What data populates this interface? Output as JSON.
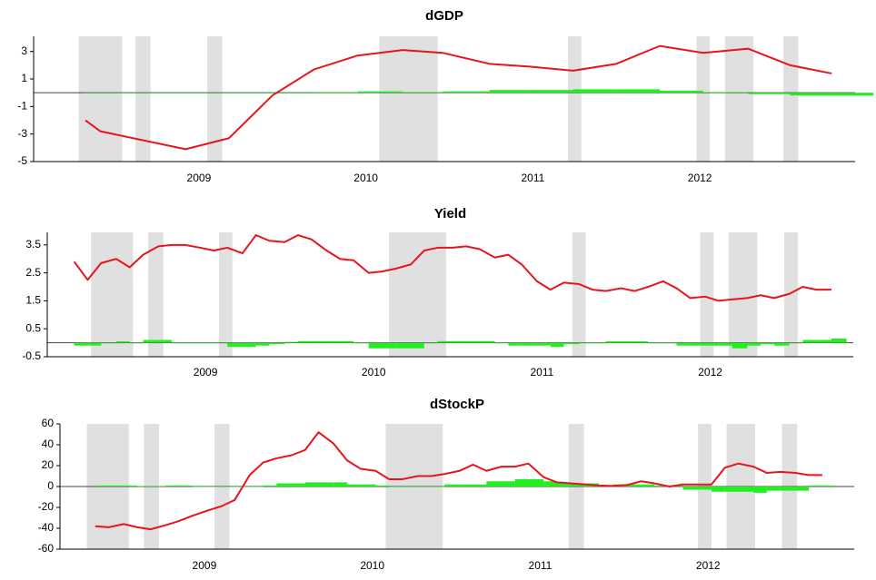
{
  "chart_data": [
    {
      "type": "line",
      "title": "dGDP",
      "xlim": [
        2008.51,
        2013.43
      ],
      "ylim": [
        -5,
        4.1
      ],
      "xticks": [
        {
          "value": 2009.5,
          "label": "2009"
        },
        {
          "value": 2010.5,
          "label": "2010"
        },
        {
          "value": 2011.5,
          "label": "2011"
        },
        {
          "value": 2012.5,
          "label": "2012"
        }
      ],
      "yticks": [
        -5,
        -3,
        -1,
        1,
        3
      ],
      "shaded": [
        [
          2008.78,
          2009.04
        ],
        [
          2009.12,
          2009.21
        ],
        [
          2009.55,
          2009.64
        ],
        [
          2010.58,
          2010.93
        ],
        [
          2011.71,
          2011.79
        ],
        [
          2012.48,
          2012.56
        ],
        [
          2012.65,
          2012.82
        ],
        [
          2013.0,
          2013.09
        ]
      ],
      "series": [
        {
          "type": "bar",
          "color": "#22ee22",
          "x": [
            2008.82,
            2008.91,
            2009.42,
            2009.68,
            2009.94,
            2010.19,
            2010.45,
            2010.72,
            2010.96,
            2011.24,
            2011.48,
            2011.74,
            2012.0,
            2012.26,
            2012.52,
            2012.79,
            2013.04,
            2013.29
          ],
          "values": [
            0,
            0,
            0,
            0,
            0,
            0.05,
            0.1,
            0.05,
            0.1,
            0.2,
            0.2,
            0.25,
            0.25,
            0.15,
            0.05,
            -0.1,
            -0.2,
            -0.2
          ]
        },
        {
          "type": "line",
          "color": "#e8141c",
          "x": [
            2008.82,
            2008.91,
            2009.42,
            2009.68,
            2009.94,
            2010.19,
            2010.45,
            2010.72,
            2010.96,
            2011.24,
            2011.48,
            2011.74,
            2012.0,
            2012.26,
            2012.52,
            2012.79,
            2013.04,
            2013.29
          ],
          "values": [
            -2.0,
            -2.8,
            -4.1,
            -3.3,
            -0.2,
            1.7,
            2.7,
            3.1,
            2.9,
            2.1,
            1.9,
            1.6,
            2.1,
            3.4,
            2.9,
            3.2,
            2.0,
            1.4
          ]
        }
      ]
    },
    {
      "type": "line",
      "title": "Yield",
      "xlim": [
        2008.56,
        2013.35
      ],
      "ylim": [
        -0.5,
        3.95
      ],
      "xticks": [
        {
          "value": 2009.5,
          "label": "2009"
        },
        {
          "value": 2010.5,
          "label": "2010"
        },
        {
          "value": 2011.5,
          "label": "2011"
        },
        {
          "value": 2012.5,
          "label": "2012"
        }
      ],
      "yticks": [
        -0.5,
        0.5,
        1.5,
        2.5,
        3.5
      ],
      "shaded": [
        [
          2008.82,
          2009.07
        ],
        [
          2009.16,
          2009.25
        ],
        [
          2009.58,
          2009.66
        ],
        [
          2010.59,
          2010.93
        ],
        [
          2011.68,
          2011.76
        ],
        [
          2012.44,
          2012.52
        ],
        [
          2012.61,
          2012.78
        ],
        [
          2012.94,
          2013.02
        ]
      ],
      "series": [
        {
          "type": "bar",
          "color": "#22ee22",
          "x": [
            2008.72,
            2008.8,
            2008.88,
            2008.97,
            2009.05,
            2009.13,
            2009.22,
            2009.3,
            2009.38,
            2009.47,
            2009.55,
            2009.63,
            2009.72,
            2009.8,
            2009.88,
            2009.97,
            2010.05,
            2010.13,
            2010.22,
            2010.3,
            2010.38,
            2010.47,
            2010.55,
            2010.63,
            2010.72,
            2010.8,
            2010.88,
            2010.97,
            2011.05,
            2011.13,
            2011.22,
            2011.3,
            2011.38,
            2011.47,
            2011.55,
            2011.63,
            2011.72,
            2011.8,
            2011.88,
            2011.97,
            2012.05,
            2012.13,
            2012.22,
            2012.3,
            2012.38,
            2012.47,
            2012.55,
            2012.63,
            2012.72,
            2012.8,
            2012.88,
            2012.97,
            2013.05,
            2013.13,
            2013.22
          ],
          "values": [
            -0.1,
            -0.1,
            0,
            0.05,
            0,
            0.1,
            0.1,
            0,
            0,
            0,
            0,
            -0.15,
            -0.15,
            -0.1,
            -0.05,
            0.03,
            0.06,
            0.06,
            0.06,
            0.06,
            0,
            -0.2,
            -0.2,
            -0.2,
            -0.2,
            0,
            0.06,
            0.06,
            0.06,
            0.06,
            0,
            -0.1,
            -0.1,
            -0.1,
            -0.15,
            -0.05,
            0,
            0,
            0.05,
            0.05,
            0.05,
            0,
            0,
            -0.1,
            -0.1,
            -0.1,
            -0.1,
            -0.2,
            -0.1,
            -0.05,
            -0.1,
            0,
            0.1,
            0.1,
            0.15
          ]
        },
        {
          "type": "line",
          "color": "#e8141c",
          "x": [
            2008.72,
            2008.8,
            2008.88,
            2008.97,
            2009.05,
            2009.13,
            2009.22,
            2009.3,
            2009.38,
            2009.47,
            2009.55,
            2009.63,
            2009.72,
            2009.8,
            2009.88,
            2009.97,
            2010.05,
            2010.13,
            2010.22,
            2010.3,
            2010.38,
            2010.47,
            2010.55,
            2010.63,
            2010.72,
            2010.8,
            2010.88,
            2010.97,
            2011.05,
            2011.13,
            2011.22,
            2011.3,
            2011.38,
            2011.47,
            2011.55,
            2011.63,
            2011.72,
            2011.8,
            2011.88,
            2011.97,
            2012.05,
            2012.13,
            2012.22,
            2012.3,
            2012.38,
            2012.47,
            2012.55,
            2012.63,
            2012.72,
            2012.8,
            2012.88,
            2012.97,
            2013.05,
            2013.13,
            2013.22
          ],
          "values": [
            2.9,
            2.25,
            2.85,
            3.0,
            2.7,
            3.15,
            3.45,
            3.5,
            3.5,
            3.4,
            3.3,
            3.4,
            3.2,
            3.85,
            3.65,
            3.6,
            3.85,
            3.7,
            3.3,
            3.0,
            2.95,
            2.5,
            2.55,
            2.65,
            2.8,
            3.3,
            3.4,
            3.4,
            3.45,
            3.35,
            3.05,
            3.15,
            2.8,
            2.2,
            1.9,
            2.15,
            2.1,
            1.9,
            1.85,
            1.95,
            1.85,
            2.0,
            2.2,
            1.95,
            1.6,
            1.65,
            1.5,
            1.55,
            1.6,
            1.7,
            1.6,
            1.75,
            2.0,
            1.9,
            1.9
          ]
        }
      ]
    },
    {
      "type": "line",
      "title": "dStockP",
      "xlim": [
        2008.64,
        2013.37
      ],
      "ylim": [
        -60,
        60
      ],
      "xticks": [
        {
          "value": 2009.5,
          "label": "2009"
        },
        {
          "value": 2010.5,
          "label": "2010"
        },
        {
          "value": 2011.5,
          "label": "2011"
        },
        {
          "value": 2012.5,
          "label": "2012"
        }
      ],
      "yticks": [
        -60,
        -40,
        -20,
        0,
        20,
        40,
        60
      ],
      "shaded": [
        [
          2008.8,
          2009.05
        ],
        [
          2009.14,
          2009.23
        ],
        [
          2009.56,
          2009.65
        ],
        [
          2010.58,
          2010.92
        ],
        [
          2011.67,
          2011.76
        ],
        [
          2012.44,
          2012.52
        ],
        [
          2012.61,
          2012.78
        ],
        [
          2012.94,
          2013.03
        ]
      ],
      "series": [
        {
          "type": "bar",
          "color": "#22ee22",
          "x": [
            2008.85,
            2008.93,
            2009.02,
            2009.1,
            2009.18,
            2009.27,
            2009.35,
            2009.43,
            2009.52,
            2009.6,
            2009.68,
            2009.77,
            2009.85,
            2009.93,
            2010.02,
            2010.1,
            2010.18,
            2010.27,
            2010.35,
            2010.43,
            2010.52,
            2010.6,
            2010.68,
            2010.77,
            2010.85,
            2010.93,
            2011.02,
            2011.1,
            2011.18,
            2011.27,
            2011.35,
            2011.43,
            2011.52,
            2011.6,
            2011.68,
            2011.77,
            2011.85,
            2011.93,
            2012.02,
            2012.1,
            2012.18,
            2012.27,
            2012.35,
            2012.43,
            2012.52,
            2012.6,
            2012.68,
            2012.77,
            2012.85,
            2012.93,
            2013.02,
            2013.1,
            2013.18
          ],
          "values": [
            1,
            1,
            1,
            0.5,
            0.5,
            1,
            1,
            0,
            0,
            0,
            0,
            0,
            1,
            3,
            3,
            4,
            4,
            4,
            2,
            2,
            1,
            0,
            0,
            0,
            0,
            2,
            2,
            2,
            5,
            5,
            7,
            7,
            5,
            3,
            3,
            3,
            1,
            2,
            2,
            2,
            1,
            1,
            -3,
            -3,
            -5,
            -5,
            -5,
            -6,
            -4,
            -4,
            -4,
            1,
            1
          ]
        },
        {
          "type": "line",
          "color": "#e8141c",
          "x": [
            2008.85,
            2008.93,
            2009.02,
            2009.1,
            2009.18,
            2009.27,
            2009.35,
            2009.43,
            2009.52,
            2009.6,
            2009.68,
            2009.77,
            2009.85,
            2009.93,
            2010.02,
            2010.1,
            2010.18,
            2010.27,
            2010.35,
            2010.43,
            2010.52,
            2010.6,
            2010.68,
            2010.77,
            2010.85,
            2010.93,
            2011.02,
            2011.1,
            2011.18,
            2011.27,
            2011.35,
            2011.43,
            2011.52,
            2011.6,
            2011.68,
            2011.77,
            2011.85,
            2011.93,
            2012.02,
            2012.1,
            2012.18,
            2012.27,
            2012.35,
            2012.43,
            2012.52,
            2012.6,
            2012.68,
            2012.77,
            2012.85,
            2012.93,
            2013.02,
            2013.1,
            2013.18
          ],
          "values": [
            -38,
            -39,
            -36,
            -39,
            -41,
            -37,
            -33,
            -28,
            -23,
            -19,
            -13,
            11,
            23,
            27,
            30,
            35,
            52,
            41,
            25,
            17,
            15,
            7,
            7,
            10,
            10,
            12,
            15,
            21,
            15,
            19,
            19,
            22,
            9,
            4,
            3,
            2,
            1,
            0.5,
            1.5,
            5,
            3,
            0,
            2,
            2,
            2,
            18,
            22,
            19,
            13,
            14,
            13,
            11,
            11
          ]
        }
      ]
    }
  ]
}
